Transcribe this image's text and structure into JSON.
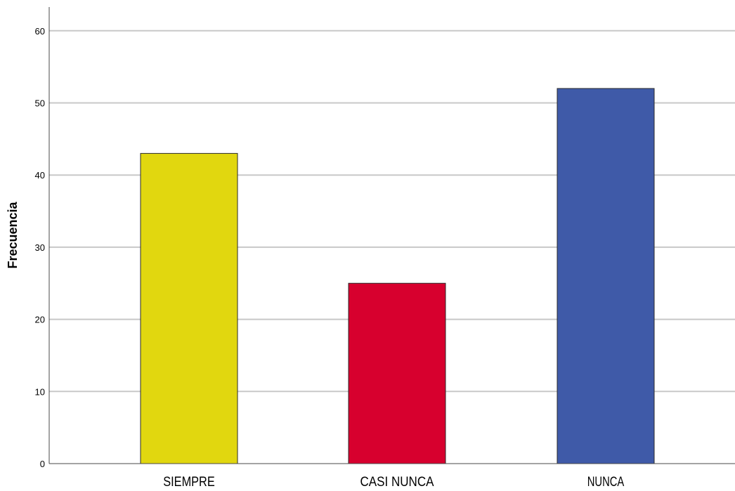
{
  "chart_data": {
    "type": "bar",
    "title": "",
    "xlabel": "",
    "ylabel": "Frecuencia",
    "categories": [
      "SIEMPRE",
      "CASI NUNCA",
      "NUNCA"
    ],
    "values": [
      43,
      25,
      52
    ],
    "colors": [
      "#e1d70f",
      "#d7002e",
      "#3f5aa8"
    ],
    "ylim": [
      0,
      60
    ],
    "yticks": [
      "0",
      "10",
      "20",
      "30",
      "40",
      "50",
      "60"
    ],
    "grid": true,
    "legend": "none"
  }
}
